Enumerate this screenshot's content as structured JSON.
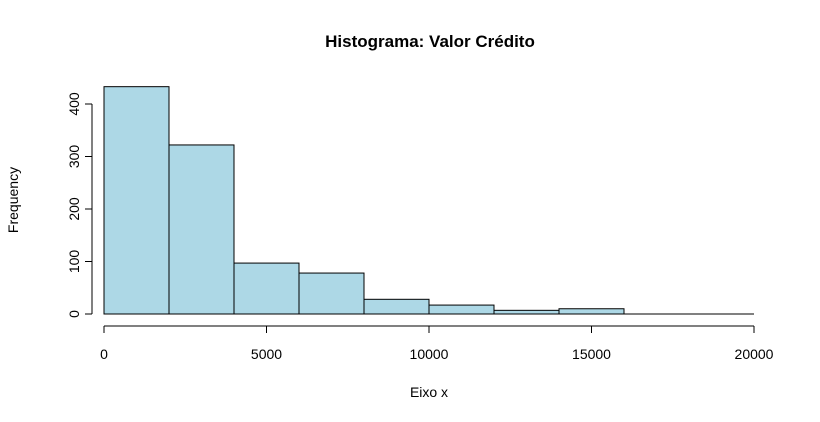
{
  "chart_data": {
    "type": "bar",
    "title": "Histograma: Valor Crédito",
    "xlabel": "Eixo x",
    "ylabel": "Frequency",
    "bins": [
      {
        "start": 0,
        "end": 2000,
        "value": 433
      },
      {
        "start": 2000,
        "end": 4000,
        "value": 322
      },
      {
        "start": 4000,
        "end": 6000,
        "value": 97
      },
      {
        "start": 6000,
        "end": 8000,
        "value": 78
      },
      {
        "start": 8000,
        "end": 10000,
        "value": 28
      },
      {
        "start": 10000,
        "end": 12000,
        "value": 17
      },
      {
        "start": 12000,
        "end": 14000,
        "value": 7
      },
      {
        "start": 14000,
        "end": 16000,
        "value": 10
      },
      {
        "start": 16000,
        "end": 18000,
        "value": 0
      },
      {
        "start": 18000,
        "end": 20000,
        "value": 0
      }
    ],
    "xlim": [
      0,
      20000
    ],
    "ylim": [
      0,
      450
    ],
    "xticks": [
      "0",
      "5000",
      "10000",
      "15000",
      "20000"
    ],
    "yticks": [
      "0",
      "100",
      "200",
      "300",
      "400"
    ],
    "bar_color": "#add8e6",
    "grid": false
  }
}
